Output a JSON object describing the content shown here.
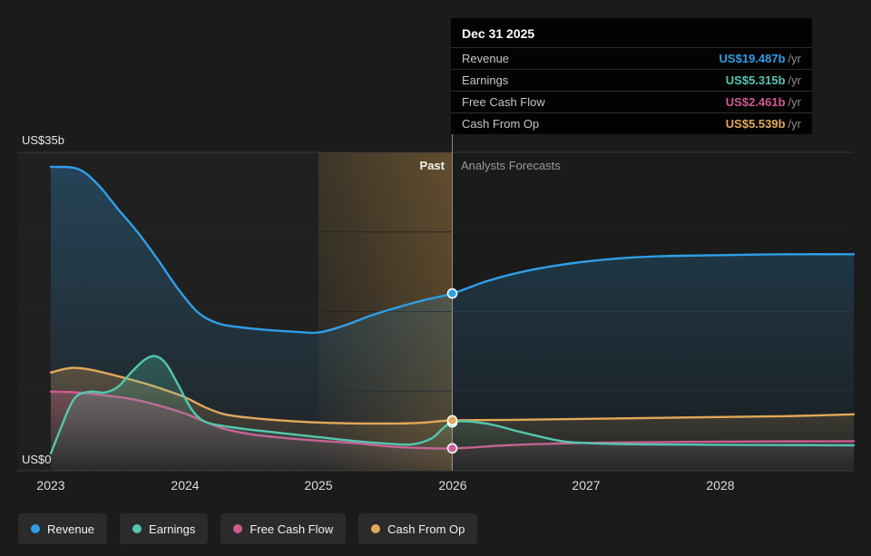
{
  "tooltip": {
    "title": "Dec 31 2025",
    "rows": [
      {
        "label": "Revenue",
        "value": "US$19.487b",
        "unit": "/yr",
        "color": "#2f9fe6"
      },
      {
        "label": "Earnings",
        "value": "US$5.315b",
        "unit": "/yr",
        "color": "#54c6af"
      },
      {
        "label": "Free Cash Flow",
        "value": "US$2.461b",
        "unit": "/yr",
        "color": "#cf5b92"
      },
      {
        "label": "Cash From Op",
        "value": "US$5.539b",
        "unit": "/yr",
        "color": "#e2a85a"
      }
    ]
  },
  "axis": {
    "y_top": "US$35b",
    "y_bottom": "US$0",
    "x_ticks": [
      "2023",
      "2024",
      "2025",
      "2026",
      "2027",
      "2028"
    ]
  },
  "labels": {
    "past": "Past",
    "forecast": "Analysts Forecasts"
  },
  "chart_data": {
    "type": "line",
    "title": "",
    "y_unit": "US$ billions per year",
    "x_range": [
      2023,
      2029
    ],
    "y_range": [
      0,
      35
    ],
    "divider_x": 2026,
    "band_x": [
      2025,
      2026
    ],
    "grid": "horizontal",
    "legend_position": "bottom-left",
    "marker_date": "Dec 31 2025",
    "series": [
      {
        "name": "Revenue",
        "color": "#2f9fe6",
        "marker_value": 19.487,
        "points": [
          [
            2023.0,
            33.4
          ],
          [
            2023.2,
            33.2
          ],
          [
            2023.35,
            31.5
          ],
          [
            2023.5,
            28.8
          ],
          [
            2023.65,
            26.2
          ],
          [
            2023.8,
            23.2
          ],
          [
            2023.95,
            20.0
          ],
          [
            2024.1,
            17.4
          ],
          [
            2024.25,
            16.2
          ],
          [
            2024.4,
            15.8
          ],
          [
            2024.6,
            15.5
          ],
          [
            2024.8,
            15.3
          ],
          [
            2025.0,
            15.2
          ],
          [
            2025.2,
            16.0
          ],
          [
            2025.4,
            17.1
          ],
          [
            2025.6,
            18.0
          ],
          [
            2025.8,
            18.8
          ],
          [
            2026.0,
            19.487
          ],
          [
            2026.25,
            20.8
          ],
          [
            2026.5,
            21.8
          ],
          [
            2026.75,
            22.5
          ],
          [
            2027.0,
            23.0
          ],
          [
            2027.3,
            23.4
          ],
          [
            2027.6,
            23.6
          ],
          [
            2028.0,
            23.7
          ],
          [
            2028.5,
            23.8
          ],
          [
            2029.0,
            23.8
          ]
        ]
      },
      {
        "name": "Earnings",
        "color": "#54c6af",
        "marker_value": 5.315,
        "points": [
          [
            2023.0,
            1.9
          ],
          [
            2023.07,
            4.5
          ],
          [
            2023.14,
            7.0
          ],
          [
            2023.2,
            8.3
          ],
          [
            2023.3,
            8.7
          ],
          [
            2023.4,
            8.6
          ],
          [
            2023.5,
            9.2
          ],
          [
            2023.6,
            10.8
          ],
          [
            2023.7,
            12.2
          ],
          [
            2023.78,
            12.6
          ],
          [
            2023.86,
            11.8
          ],
          [
            2023.95,
            9.5
          ],
          [
            2024.05,
            6.8
          ],
          [
            2024.15,
            5.4
          ],
          [
            2024.3,
            4.9
          ],
          [
            2024.5,
            4.5
          ],
          [
            2024.75,
            4.1
          ],
          [
            2025.0,
            3.7
          ],
          [
            2025.25,
            3.3
          ],
          [
            2025.5,
            3.0
          ],
          [
            2025.7,
            2.9
          ],
          [
            2025.85,
            3.6
          ],
          [
            2026.0,
            5.315
          ],
          [
            2026.25,
            5.2
          ],
          [
            2026.5,
            4.3
          ],
          [
            2026.8,
            3.3
          ],
          [
            2027.0,
            3.05
          ],
          [
            2027.4,
            2.9
          ],
          [
            2028.0,
            2.85
          ],
          [
            2029.0,
            2.8
          ]
        ]
      },
      {
        "name": "Free Cash Flow",
        "color": "#cf5b92",
        "marker_value": 2.461,
        "points": [
          [
            2023.0,
            8.7
          ],
          [
            2023.2,
            8.6
          ],
          [
            2023.4,
            8.3
          ],
          [
            2023.6,
            7.9
          ],
          [
            2023.8,
            7.2
          ],
          [
            2024.0,
            6.3
          ],
          [
            2024.15,
            5.4
          ],
          [
            2024.3,
            4.6
          ],
          [
            2024.5,
            4.0
          ],
          [
            2024.75,
            3.6
          ],
          [
            2025.0,
            3.3
          ],
          [
            2025.3,
            3.0
          ],
          [
            2025.6,
            2.6
          ],
          [
            2026.0,
            2.461
          ],
          [
            2026.4,
            2.8
          ],
          [
            2026.8,
            3.0
          ],
          [
            2027.2,
            3.1
          ],
          [
            2027.6,
            3.15
          ],
          [
            2028.0,
            3.2
          ],
          [
            2029.0,
            3.25
          ]
        ]
      },
      {
        "name": "Cash From Op",
        "color": "#e2a85a",
        "marker_value": 5.539,
        "points": [
          [
            2023.0,
            10.8
          ],
          [
            2023.15,
            11.3
          ],
          [
            2023.3,
            11.1
          ],
          [
            2023.5,
            10.4
          ],
          [
            2023.7,
            9.6
          ],
          [
            2023.85,
            8.9
          ],
          [
            2024.0,
            8.1
          ],
          [
            2024.15,
            7.0
          ],
          [
            2024.3,
            6.2
          ],
          [
            2024.5,
            5.8
          ],
          [
            2024.75,
            5.5
          ],
          [
            2025.0,
            5.3
          ],
          [
            2025.3,
            5.2
          ],
          [
            2025.6,
            5.2
          ],
          [
            2025.8,
            5.3
          ],
          [
            2026.0,
            5.539
          ],
          [
            2026.5,
            5.6
          ],
          [
            2027.0,
            5.7
          ],
          [
            2027.5,
            5.8
          ],
          [
            2028.0,
            5.9
          ],
          [
            2028.5,
            6.0
          ],
          [
            2029.0,
            6.2
          ]
        ]
      }
    ]
  }
}
